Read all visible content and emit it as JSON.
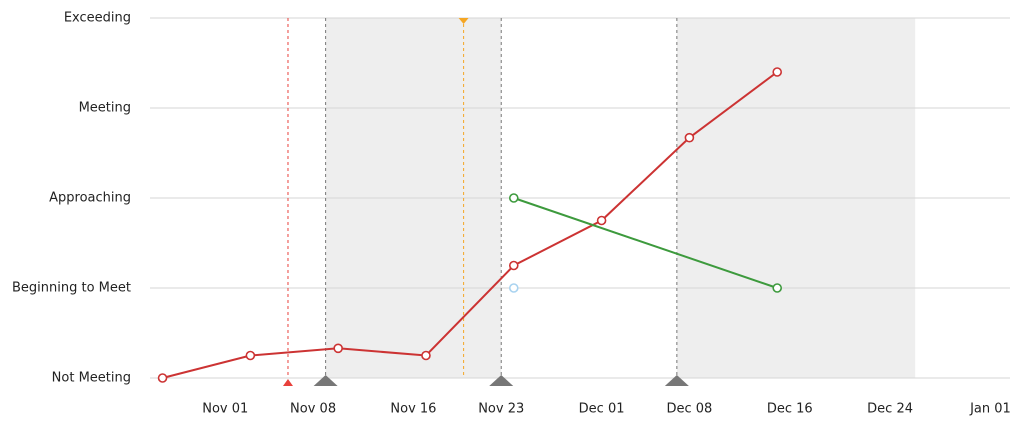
{
  "chart_data": {
    "type": "line",
    "xlim": [
      "Oct 26",
      "Jan 02"
    ],
    "xticks": [
      "Nov 01",
      "Nov 08",
      "Nov 16",
      "Nov 23",
      "Dec 01",
      "Dec 08",
      "Dec 16",
      "Dec 24",
      "Jan 01"
    ],
    "ylim": [
      0,
      4
    ],
    "yticks": [
      {
        "value": 0,
        "label": "Not Meeting"
      },
      {
        "value": 1,
        "label": "Beginning to Meet"
      },
      {
        "value": 2,
        "label": "Approaching"
      },
      {
        "value": 3,
        "label": "Meeting"
      },
      {
        "value": 4,
        "label": "Exceeding"
      }
    ],
    "grid": true,
    "shade_color": "#eeeeee",
    "shaded_ranges": [
      [
        "Nov 09",
        "Nov 23"
      ],
      [
        "Dec 07",
        "Dec 26"
      ]
    ],
    "reference_lines": [
      {
        "x": "Nov 06",
        "color": "#e8413c",
        "marker": "bottom"
      },
      {
        "x": "Nov 20",
        "color": "#f5a623",
        "marker": "top"
      },
      {
        "x": "Nov 09",
        "color": "#777777",
        "marker": "bottom"
      },
      {
        "x": "Nov 23",
        "color": "#777777",
        "marker": "bottom"
      },
      {
        "x": "Dec 07",
        "color": "#777777",
        "marker": "bottom"
      }
    ],
    "series": [
      {
        "color": "#cc3333",
        "x": [
          "Oct 27",
          "Nov 03",
          "Nov 10",
          "Nov 17",
          "Nov 24",
          "Dec 01",
          "Dec 08",
          "Dec 15"
        ],
        "values": [
          0,
          0.25,
          0.33,
          0.25,
          1.25,
          1.75,
          2.67,
          3.4
        ]
      },
      {
        "color": "#3d9a3d",
        "x": [
          "Nov 24",
          "Dec 15"
        ],
        "values": [
          2,
          1
        ]
      },
      {
        "color": "#a9d3f0",
        "x": [
          "Nov 24"
        ],
        "values": [
          1
        ]
      }
    ]
  }
}
